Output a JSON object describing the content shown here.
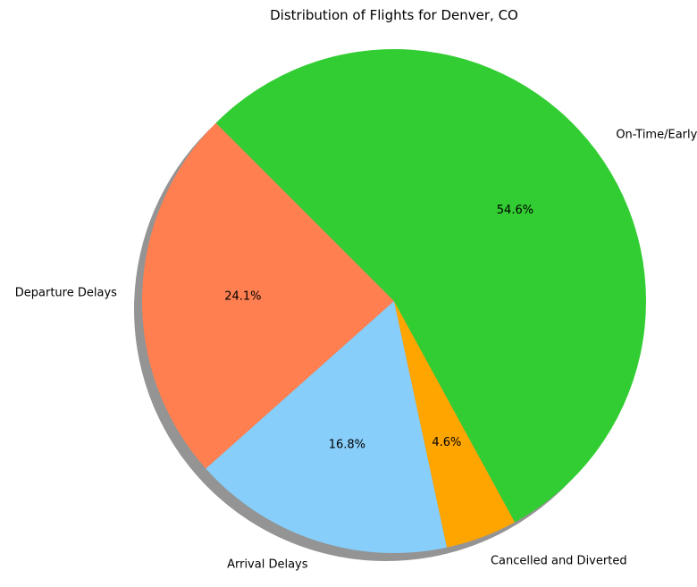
{
  "chart_data": {
    "type": "pie",
    "title": "Distribution of Flights for Denver, CO",
    "start_angle_deg": 135,
    "direction": "counterclockwise",
    "shadow": true,
    "slices": [
      {
        "label": "Departure Delays",
        "value": 24.1,
        "pct_label": "24.1%",
        "color": "#FF7F50"
      },
      {
        "label": "Arrival Delays",
        "value": 16.8,
        "pct_label": "16.8%",
        "color": "#87CEFA"
      },
      {
        "label": "Cancelled and Diverted",
        "value": 4.6,
        "pct_label": "4.6%",
        "color": "#FFA500"
      },
      {
        "label": "On-Time/Early",
        "value": 54.6,
        "pct_label": "54.6%",
        "color": "#32CD32"
      }
    ]
  }
}
